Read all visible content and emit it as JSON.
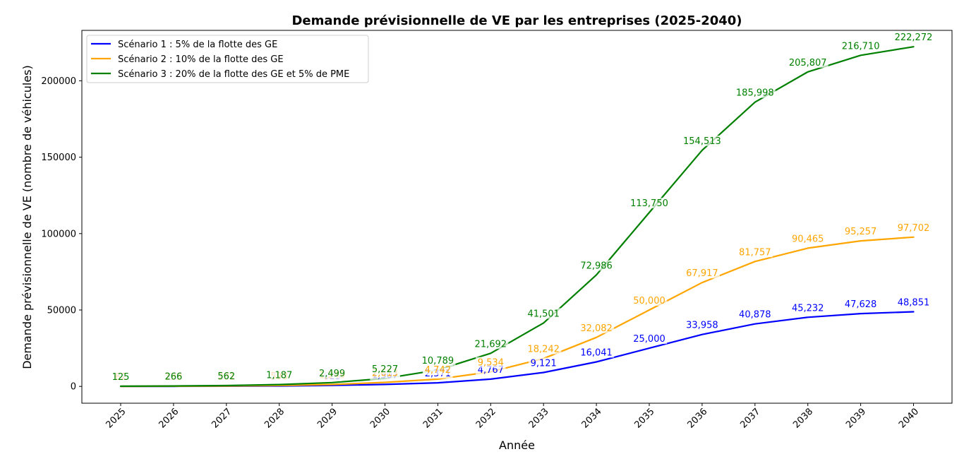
{
  "chart_data": {
    "type": "line",
    "title": "Demande prévisionnelle de VE par les entreprises (2025-2040)",
    "xlabel": "Année",
    "ylabel": "Demande prévisionnelle de VE (nombre de véhicules)",
    "x": [
      2025,
      2026,
      2027,
      2028,
      2029,
      2030,
      2031,
      2032,
      2033,
      2034,
      2035,
      2036,
      2037,
      2038,
      2039,
      2040
    ],
    "x_tick_labels": [
      "2025",
      "2026",
      "2027",
      "2028",
      "2029",
      "2030",
      "2031",
      "2032",
      "2033",
      "2034",
      "2035",
      "2036",
      "2037",
      "2038",
      "2039",
      "2040"
    ],
    "y_ticks": [
      0,
      50000,
      100000,
      150000,
      200000
    ],
    "y_tick_labels": [
      "0",
      "50000",
      "100000",
      "150000",
      "200000"
    ],
    "ylim": [
      -11000,
      233000
    ],
    "grid": false,
    "legend_position": "top-left",
    "series": [
      {
        "name": "Scénario 1 : 5% de la flotte des GE",
        "color": "#0000ff",
        "values": [
          31,
          67,
          141,
          297,
          625,
          1307,
          2371,
          4767,
          9121,
          16041,
          25000,
          33958,
          40878,
          45232,
          47628,
          48851
        ],
        "data_labels": [
          "31",
          "67",
          "141",
          "297",
          "625",
          "1,307",
          "2,371",
          "4,767",
          "9,121",
          "16,041",
          "25,000",
          "33,958",
          "40,878",
          "45,232",
          "47,628",
          "48,851"
        ]
      },
      {
        "name": "Scénario 2 : 10% de la flotte des GE",
        "color": "#ffa500",
        "values": [
          62,
          133,
          281,
          593,
          1249,
          2613,
          4742,
          9534,
          18242,
          32082,
          50000,
          67917,
          81757,
          90465,
          95257,
          97702
        ],
        "data_labels": [
          "62",
          "133",
          "281",
          "593",
          "1,249",
          "2,613",
          "4,742",
          "9,534",
          "18,242",
          "32,082",
          "50,000",
          "67,917",
          "81,757",
          "90,465",
          "95,257",
          "97,702"
        ]
      },
      {
        "name": "Scénario 3 : 20% de la flotte des GE et 5% de PME",
        "color": "#008000",
        "values": [
          125,
          266,
          562,
          1187,
          2499,
          5227,
          10789,
          21692,
          41501,
          72986,
          113750,
          154513,
          185998,
          205807,
          216710,
          222272
        ],
        "data_labels": [
          "125",
          "266",
          "562",
          "1,187",
          "2,499",
          "5,227",
          "10,789",
          "21,692",
          "41,501",
          "72,986",
          "113,750",
          "154,513",
          "185,998",
          "205,807",
          "216,710",
          "222,272"
        ]
      }
    ]
  }
}
